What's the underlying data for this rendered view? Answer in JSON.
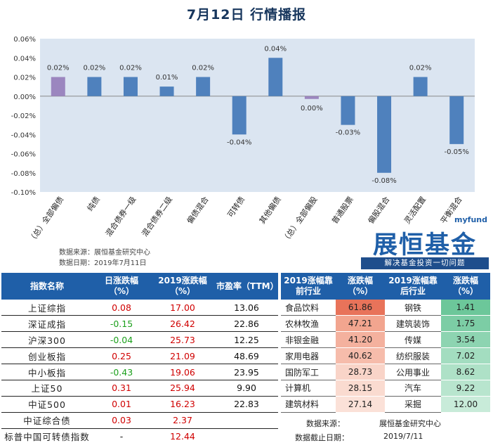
{
  "header": {
    "title": "7月12日  行情播报"
  },
  "chart_data": {
    "type": "bar",
    "categories": [
      "（总）全部偏债",
      "纯债",
      "混合债券一级",
      "混合债券二级",
      "偏债混合",
      "可转债",
      "其他偏债",
      "（总）全部偏股",
      "普通股票",
      "偏股混合",
      "灵活配置",
      "平衡混合"
    ],
    "values": [
      0.02,
      0.02,
      0.02,
      0.01,
      0.02,
      -0.04,
      0.04,
      0.0,
      -0.03,
      -0.08,
      0.02,
      -0.05
    ],
    "labels": [
      "0.02%",
      "0.02%",
      "0.02%",
      "0.01%",
      "0.02%",
      "-0.04%",
      "0.04%",
      "0.00%",
      "-0.03%",
      "-0.08%",
      "0.02%",
      "-0.05%"
    ],
    "bar_colors": [
      "#9b86bf",
      "#4f81bd",
      "#4f81bd",
      "#4f81bd",
      "#4f81bd",
      "#4f81bd",
      "#4f81bd",
      "#9b86bf",
      "#4f81bd",
      "#4f81bd",
      "#4f81bd",
      "#4f81bd"
    ],
    "ylim": [
      -0.1,
      0.06
    ],
    "yticks": [
      0.06,
      0.04,
      0.02,
      0.0,
      -0.02,
      -0.04,
      -0.06,
      -0.08,
      -0.1
    ],
    "ytick_labels": [
      "0.06%",
      "0.04%",
      "0.02%",
      "0.00%",
      "-0.02%",
      "-0.04%",
      "-0.06%",
      "-0.08%",
      "-0.10%"
    ],
    "plot_background": "#dbe5f1",
    "xlabel": "",
    "ylabel": "",
    "grid": false
  },
  "chart_source": {
    "source": "数据来源：展恒基金研究中心",
    "date": "数据日期：2019年7月11日"
  },
  "logo": {
    "tag": "myfund",
    "name": "展恒基金",
    "slogan": "解决基金投资一切问题"
  },
  "index_table": {
    "headers": [
      "指数名称",
      "日涨跌幅（%）",
      "2019涨跌幅（%）",
      "市盈率（TTM）"
    ],
    "rows": [
      {
        "name": "上证综指",
        "daily": "0.08",
        "ytd": "17.00",
        "pe": "13.06",
        "sign": "pos"
      },
      {
        "name": "深证成指",
        "daily": "-0.15",
        "ytd": "26.42",
        "pe": "22.86",
        "sign": "neg"
      },
      {
        "name": "沪深300",
        "daily": "-0.04",
        "ytd": "25.73",
        "pe": "12.25",
        "sign": "neg"
      },
      {
        "name": "创业板指",
        "daily": "0.25",
        "ytd": "21.09",
        "pe": "48.69",
        "sign": "pos"
      },
      {
        "name": "中小板指",
        "daily": "-0.43",
        "ytd": "19.06",
        "pe": "23.95",
        "sign": "neg"
      },
      {
        "name": "上证50",
        "daily": "0.31",
        "ytd": "25.94",
        "pe": "9.90",
        "sign": "pos"
      },
      {
        "name": "中证500",
        "daily": "0.01",
        "ytd": "16.23",
        "pe": "22.83",
        "sign": "pos"
      },
      {
        "name": "中证综合债",
        "daily": "0.03",
        "ytd": "2.37",
        "pe": "",
        "sign": "pos"
      },
      {
        "name": "标普中国可转债指数",
        "daily": "-",
        "ytd": "12.44",
        "pe": "",
        "sign": "blk"
      }
    ]
  },
  "sector_table": {
    "headers": [
      "2019涨幅靠前行业",
      "涨跌幅（%）",
      "2019涨幅靠后行业",
      "涨跌幅（%）"
    ],
    "top_colors": [
      "#e8735a",
      "#f2a58f",
      "#f4b19e",
      "#f6bcab",
      "#f9d4c8",
      "#fadbd0",
      "#fbe1d8"
    ],
    "bottom_colors": [
      "#6cc79a",
      "#7ccda5",
      "#8dd4b1",
      "#a3ddc0",
      "#aee1c7",
      "#b8e5ce",
      "#c8ebd9"
    ],
    "rows": [
      {
        "top_name": "食品饮料",
        "top_val": "61.86",
        "bot_name": "钢铁",
        "bot_val": "1.41"
      },
      {
        "top_name": "农林牧渔",
        "top_val": "47.21",
        "bot_name": "建筑装饰",
        "bot_val": "1.75"
      },
      {
        "top_name": "非银金融",
        "top_val": "41.20",
        "bot_name": "传媒",
        "bot_val": "3.54"
      },
      {
        "top_name": "家用电器",
        "top_val": "40.62",
        "bot_name": "纺织服装",
        "bot_val": "7.02"
      },
      {
        "top_name": "国防军工",
        "top_val": "28.73",
        "bot_name": "公用事业",
        "bot_val": "8.62"
      },
      {
        "top_name": "计算机",
        "top_val": "28.15",
        "bot_name": "汽车",
        "bot_val": "9.22"
      },
      {
        "top_name": "建筑材料",
        "top_val": "27.14",
        "bot_name": "采掘",
        "bot_val": "12.00"
      }
    ],
    "footer": {
      "source_label": "数据来源：",
      "source_value": "展恒基金研究中心",
      "date_label": "数据截止日期：",
      "date_value": "2019/7/11"
    }
  }
}
